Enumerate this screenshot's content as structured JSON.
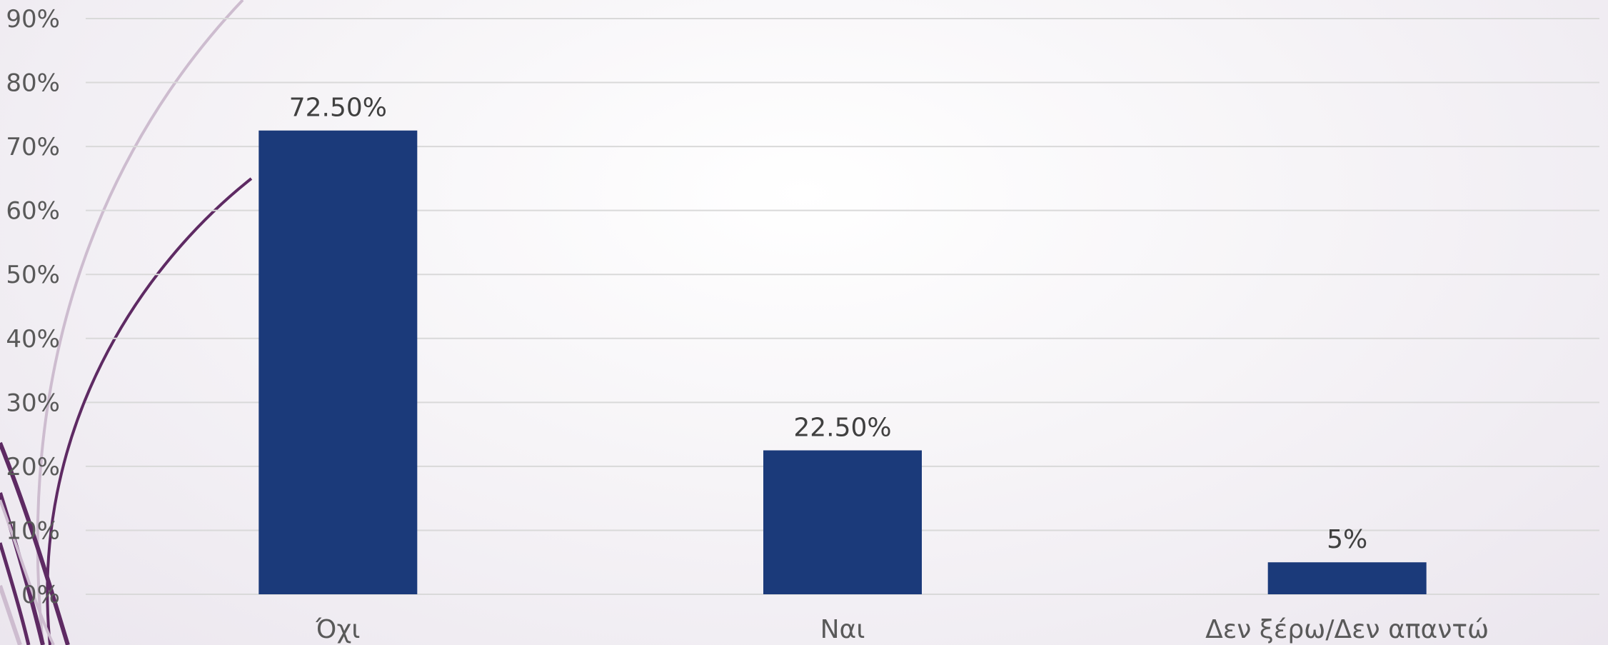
{
  "chart_data": {
    "type": "bar",
    "categories": [
      "Όχι",
      "Ναι",
      "Δεν ξέρω/Δεν απαντώ"
    ],
    "values": [
      72.5,
      22.5,
      5
    ],
    "data_labels": [
      "72.50%",
      "22.50%",
      "5%"
    ],
    "title": "",
    "xlabel": "",
    "ylabel": "",
    "ylim": [
      0,
      90
    ],
    "y_ticks": [
      "0%",
      "10%",
      "20%",
      "30%",
      "40%",
      "50%",
      "60%",
      "70%",
      "80%",
      "90%"
    ],
    "grid": true,
    "legend": "none",
    "bar_color": "#1b3a7a"
  },
  "decoration": {
    "accent_dark": "#5e2a63",
    "accent_light": "#cdbccf"
  }
}
